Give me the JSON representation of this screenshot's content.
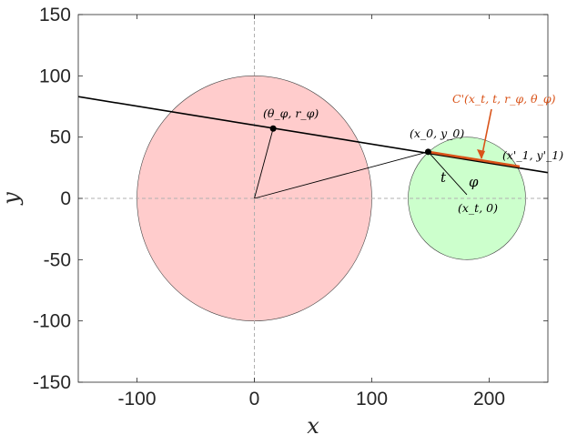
{
  "chart_data": {
    "type": "diagram",
    "xlim": [
      -150,
      250
    ],
    "ylim": [
      -150,
      150
    ],
    "xticks": [
      -100,
      0,
      100,
      200
    ],
    "yticks": [
      150,
      100,
      50,
      0,
      -50,
      -100,
      -150
    ],
    "xtick_labels": [
      "-100",
      "0",
      "100",
      "200"
    ],
    "ytick_labels": [
      "150",
      "100",
      "50",
      "0",
      "-50",
      "-100",
      "-150"
    ],
    "xlabel": "x",
    "ylabel": "y",
    "big_circle": {
      "cx": 0,
      "cy": 0,
      "r": 100,
      "fill": "#ffcccc"
    },
    "small_circle": {
      "cx": 181,
      "cy": 0,
      "r": 50,
      "fill": "#ccffcc"
    },
    "secant_line": {
      "x1": -150,
      "y1": 83,
      "x2": 250,
      "y2": 21
    },
    "chord": {
      "x1": 148,
      "y1": 38,
      "x2": 226,
      "y2": 26,
      "color": "#d95319"
    },
    "point_theta": {
      "x": 16,
      "y": 57
    },
    "point_x0": {
      "x": 148,
      "y": 38
    },
    "point_t": {
      "x": 181,
      "y": 3
    },
    "labels": {
      "theta_r": "(θ_φ, r_φ)",
      "x0y0": "(x_0, y_0)",
      "x1y1": "(x'_1, y'_1)",
      "t": "t",
      "phi": "φ",
      "xt0": "(x_t, 0)",
      "cprime": "C'(x_t, t, r_φ, θ_φ)"
    },
    "colors": {
      "axes": "#262626",
      "guide": "#b0b0b0",
      "line": "#000000",
      "highlight": "#d95319"
    }
  }
}
